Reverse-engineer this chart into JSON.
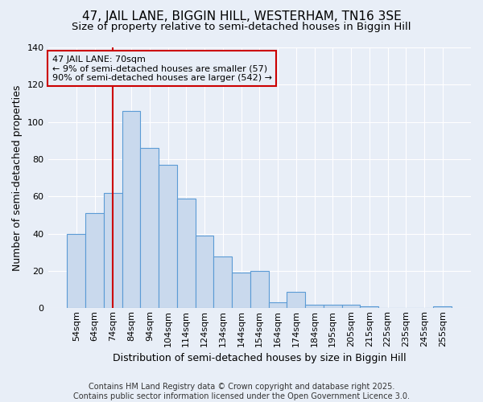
{
  "title1": "47, JAIL LANE, BIGGIN HILL, WESTERHAM, TN16 3SE",
  "title2": "Size of property relative to semi-detached houses in Biggin Hill",
  "xlabel": "Distribution of semi-detached houses by size in Biggin Hill",
  "ylabel": "Number of semi-detached properties",
  "categories": [
    "54sqm",
    "64sqm",
    "74sqm",
    "84sqm",
    "94sqm",
    "104sqm",
    "114sqm",
    "124sqm",
    "134sqm",
    "144sqm",
    "154sqm",
    "164sqm",
    "174sqm",
    "184sqm",
    "195sqm",
    "205sqm",
    "215sqm",
    "225sqm",
    "235sqm",
    "245sqm",
    "255sqm"
  ],
  "values": [
    40,
    51,
    62,
    106,
    86,
    77,
    59,
    39,
    28,
    19,
    20,
    3,
    9,
    2,
    2,
    2,
    1,
    0,
    0,
    0,
    1
  ],
  "bar_color": "#c9d9ed",
  "bar_edge_color": "#5b9bd5",
  "bg_color": "#e8eef7",
  "grid_color": "#ffffff",
  "ylim": [
    0,
    140
  ],
  "yticks": [
    0,
    20,
    40,
    60,
    80,
    100,
    120,
    140
  ],
  "vline_color": "#cc0000",
  "vline_x": 2.0,
  "annotation_line1": "47 JAIL LANE: 70sqm",
  "annotation_line2": "← 9% of semi-detached houses are smaller (57)",
  "annotation_line3": "90% of semi-detached houses are larger (542) →",
  "footer": "Contains HM Land Registry data © Crown copyright and database right 2025.\nContains public sector information licensed under the Open Government Licence 3.0.",
  "title1_fontsize": 11,
  "title2_fontsize": 9.5,
  "xlabel_fontsize": 9,
  "ylabel_fontsize": 9,
  "tick_fontsize": 8,
  "footer_fontsize": 7,
  "ann_fontsize": 8
}
